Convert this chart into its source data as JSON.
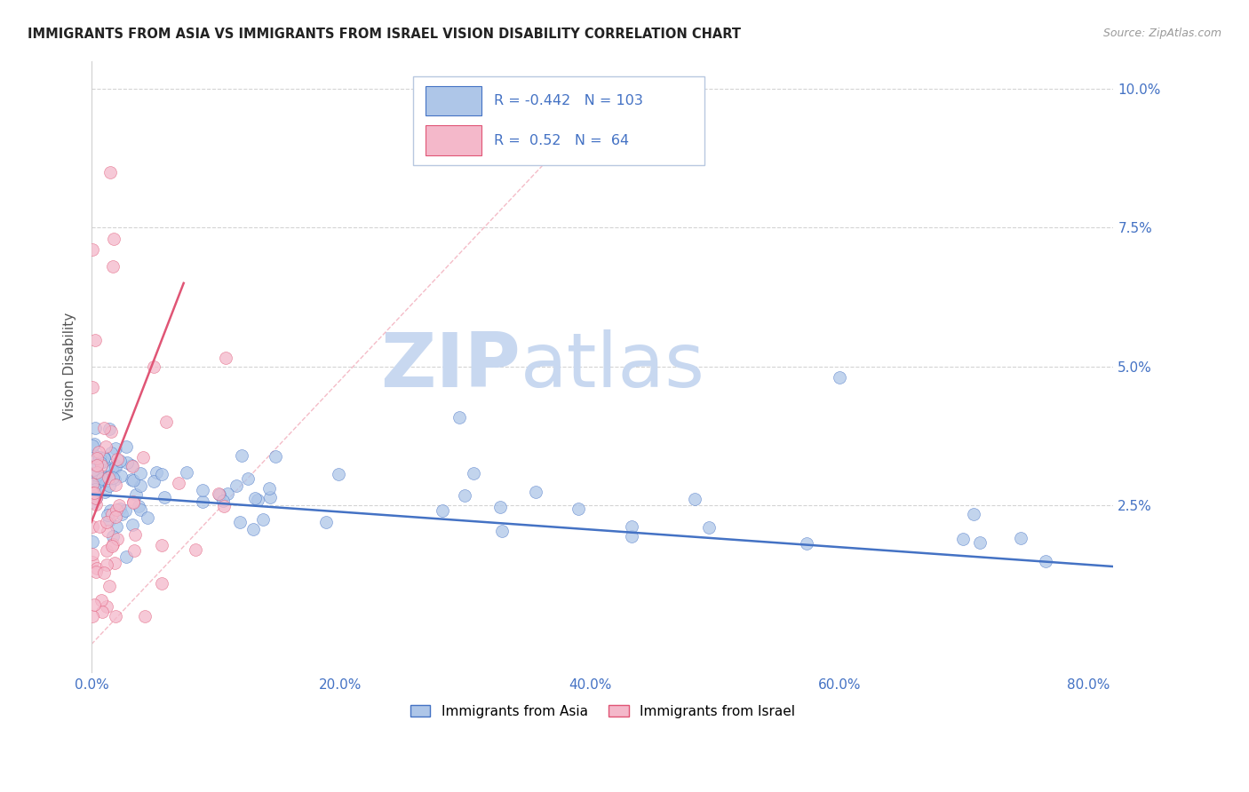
{
  "title": "IMMIGRANTS FROM ASIA VS IMMIGRANTS FROM ISRAEL VISION DISABILITY CORRELATION CHART",
  "source": "Source: ZipAtlas.com",
  "ylabel_left": "Vision Disability",
  "xlim": [
    0.0,
    0.82
  ],
  "ylim": [
    -0.005,
    0.105
  ],
  "yticks": [
    0.025,
    0.05,
    0.075,
    0.1
  ],
  "ytick_labels": [
    "2.5%",
    "5.0%",
    "7.5%",
    "10.0%"
  ],
  "xticks": [
    0.0,
    0.2,
    0.4,
    0.6,
    0.8
  ],
  "xtick_labels": [
    "0.0%",
    "20.0%",
    "40.0%",
    "60.0%",
    "80.0%"
  ],
  "legend_entries": [
    {
      "label": "Immigrants from Asia",
      "color": "#aec6e8",
      "R": -0.442,
      "N": 103
    },
    {
      "label": "Immigrants from Israel",
      "color": "#f4b8ca",
      "R": 0.52,
      "N": 64
    }
  ],
  "asia_color": "#aec6e8",
  "israel_color": "#f4b8ca",
  "asia_line_color": "#4472c4",
  "israel_line_color": "#e05575",
  "axis_color": "#4472c4",
  "grid_color": "#d0d0d0",
  "title_color": "#222222",
  "watermark_zip": "ZIP",
  "watermark_atlas": "atlas",
  "watermark_color_zip": "#c5d8f0",
  "watermark_color_atlas": "#c5d8f0"
}
